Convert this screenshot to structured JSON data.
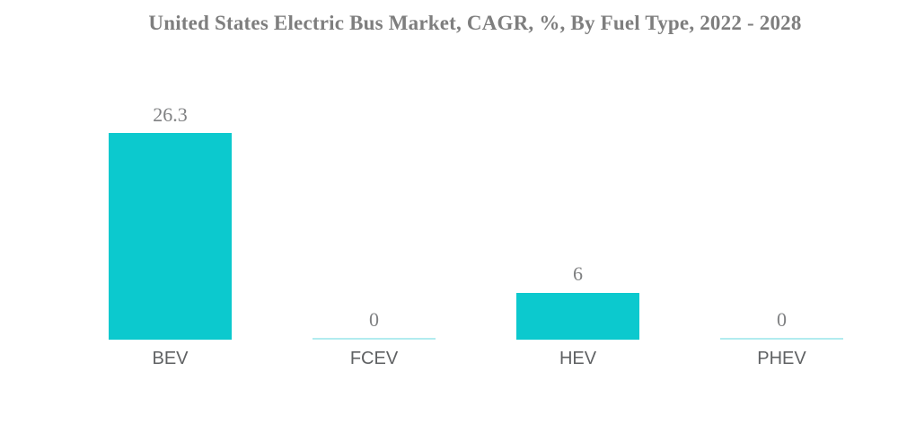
{
  "chart_data": {
    "type": "bar",
    "title": "United States Electric Bus Market, CAGR, %, By Fuel Type, 2022 - 2028",
    "categories": [
      "BEV",
      "FCEV",
      "HEV",
      "PHEV"
    ],
    "values": [
      26.3,
      0,
      6,
      0
    ],
    "value_labels": [
      "26.3",
      "0",
      "6",
      "0"
    ],
    "xlabel": "",
    "ylabel": "",
    "ylim": [
      0,
      30
    ],
    "grid": false,
    "legend": false,
    "colors": {
      "bar_fill": "#0cc9ce",
      "zero_line": "#b2ecef",
      "title_text": "#7e7e7e",
      "value_label_text": "#7f8082",
      "category_label_text": "#5f6163"
    }
  }
}
